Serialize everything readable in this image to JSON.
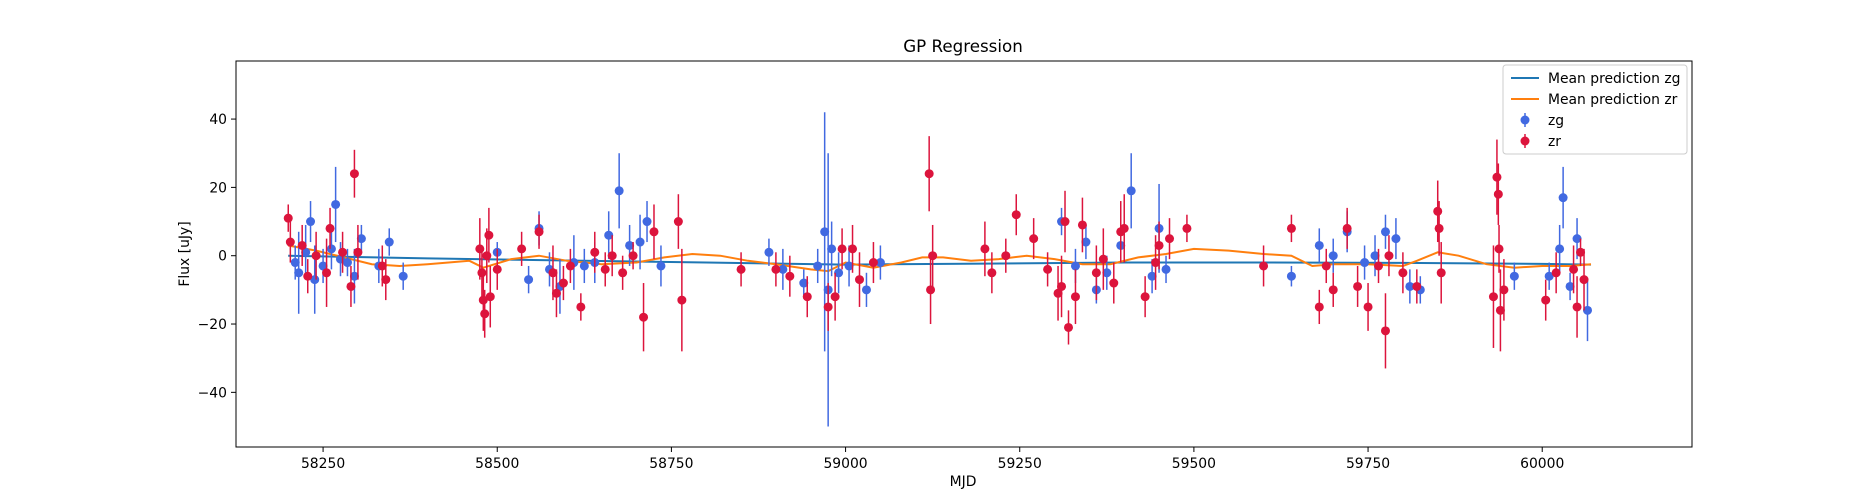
{
  "chart_data": {
    "type": "scatter",
    "title": "GP Regression",
    "xlabel": "MJD",
    "ylabel": "Flux [uJy]",
    "xlim": [
      58125,
      60215
    ],
    "ylim": [
      -56,
      57
    ],
    "xticks": [
      58250,
      58500,
      58750,
      59000,
      59250,
      59500,
      59750,
      60000
    ],
    "yticks": [
      -40,
      -20,
      0,
      20,
      40
    ],
    "grid": false,
    "legend_position": "top-right",
    "colors": {
      "zg_line": "#1f77b4",
      "zr_line": "#ff7f0e",
      "zg": "#4169e1",
      "zr": "#dc143c"
    },
    "lines": [
      {
        "name": "Mean prediction zg",
        "x": [
          58200,
          58400,
          58600,
          58800,
          59000,
          59200,
          59400,
          59600,
          59800,
          60000,
          60070
        ],
        "y": [
          0.0,
          -0.8,
          -1.4,
          -2.0,
          -2.6,
          -2.3,
          -2.0,
          -2.0,
          -2.1,
          -2.4,
          -2.6
        ]
      },
      {
        "name": "Mean prediction zr",
        "x": [
          58200,
          58240,
          58280,
          58320,
          58360,
          58400,
          58460,
          58480,
          58520,
          58560,
          58600,
          58650,
          58700,
          58740,
          58780,
          58820,
          58860,
          58900,
          58950,
          58975,
          59000,
          59040,
          59080,
          59110,
          59140,
          59180,
          59220,
          59260,
          59300,
          59340,
          59380,
          59420,
          59460,
          59500,
          59550,
          59600,
          59640,
          59670,
          59700,
          59750,
          59800,
          59820,
          59850,
          59880,
          59920,
          59960,
          60000,
          60040,
          60070
        ],
        "y": [
          3.0,
          1.5,
          -0.5,
          -2.5,
          -3.0,
          -2.5,
          -1.5,
          -3.5,
          -1.0,
          0.0,
          -1.5,
          -2.5,
          -2.0,
          -0.5,
          0.5,
          0.0,
          -1.5,
          -2.5,
          -4.0,
          -4.5,
          -2.0,
          -3.5,
          -2.0,
          -0.5,
          -0.5,
          -1.5,
          -1.0,
          0.0,
          -1.0,
          -2.5,
          -2.5,
          -0.5,
          0.5,
          2.0,
          1.5,
          0.5,
          0.0,
          -3.0,
          -2.5,
          -2.5,
          -3.0,
          -1.5,
          1.0,
          0.0,
          -2.5,
          -3.5,
          -3.0,
          -3.0,
          -2.5
        ]
      }
    ],
    "series": [
      {
        "name": "zg",
        "points": [
          [
            58210,
            -2,
            5
          ],
          [
            58215,
            -5,
            12
          ],
          [
            58225,
            1,
            8
          ],
          [
            58232,
            10,
            6
          ],
          [
            58238,
            -7,
            10
          ],
          [
            58250,
            -3,
            5
          ],
          [
            58262,
            2,
            6
          ],
          [
            58268,
            15,
            11
          ],
          [
            58275,
            -1,
            5
          ],
          [
            58285,
            -2,
            4
          ],
          [
            58295,
            -6,
            8
          ],
          [
            58305,
            5,
            4
          ],
          [
            58330,
            -3,
            5
          ],
          [
            58345,
            4,
            4
          ],
          [
            58365,
            -6,
            4
          ],
          [
            58500,
            1,
            3
          ],
          [
            58545,
            -7,
            4
          ],
          [
            58560,
            8,
            5
          ],
          [
            58575,
            -4,
            5
          ],
          [
            58590,
            -9,
            8
          ],
          [
            58610,
            -2,
            8
          ],
          [
            58625,
            -3,
            5
          ],
          [
            58640,
            -2,
            6
          ],
          [
            58660,
            6,
            7
          ],
          [
            58675,
            19,
            11
          ],
          [
            58690,
            3,
            6
          ],
          [
            58705,
            4,
            8
          ],
          [
            58715,
            10,
            6
          ],
          [
            58735,
            -3,
            6
          ],
          [
            58890,
            1,
            4
          ],
          [
            58910,
            -4,
            6
          ],
          [
            58940,
            -8,
            4
          ],
          [
            58960,
            -3,
            5
          ],
          [
            58970,
            7,
            35
          ],
          [
            58975,
            -10,
            40
          ],
          [
            58980,
            2,
            8
          ],
          [
            58990,
            -5,
            6
          ],
          [
            59005,
            -3,
            6
          ],
          [
            59030,
            -10,
            5
          ],
          [
            59050,
            -2,
            5
          ],
          [
            59310,
            10,
            4
          ],
          [
            59330,
            -3,
            5
          ],
          [
            59345,
            4,
            5
          ],
          [
            59360,
            -10,
            4
          ],
          [
            59375,
            -5,
            5
          ],
          [
            59395,
            3,
            5
          ],
          [
            59410,
            19,
            11
          ],
          [
            59440,
            -6,
            5
          ],
          [
            59450,
            8,
            13
          ],
          [
            59460,
            -4,
            4
          ],
          [
            59640,
            -6,
            3
          ],
          [
            59680,
            3,
            5
          ],
          [
            59700,
            0,
            5
          ],
          [
            59720,
            7,
            6
          ],
          [
            59745,
            -2,
            5
          ],
          [
            59760,
            0,
            6
          ],
          [
            59775,
            7,
            5
          ],
          [
            59790,
            5,
            6
          ],
          [
            59810,
            -9,
            5
          ],
          [
            59825,
            -10,
            4
          ],
          [
            59960,
            -6,
            4
          ],
          [
            60010,
            -6,
            4
          ],
          [
            60025,
            2,
            7
          ],
          [
            60030,
            17,
            9
          ],
          [
            60040,
            -9,
            4
          ],
          [
            60050,
            5,
            6
          ],
          [
            60065,
            -16,
            9
          ]
        ]
      },
      {
        "name": "zr",
        "points": [
          [
            58200,
            11,
            4
          ],
          [
            58203,
            4,
            6
          ],
          [
            58220,
            3,
            6
          ],
          [
            58228,
            -6,
            5
          ],
          [
            58240,
            0,
            7
          ],
          [
            58255,
            -5,
            10
          ],
          [
            58260,
            8,
            6
          ],
          [
            58278,
            1,
            6
          ],
          [
            58290,
            -9,
            6
          ],
          [
            58295,
            24,
            7
          ],
          [
            58300,
            1,
            8
          ],
          [
            58335,
            -3,
            6
          ],
          [
            58340,
            -7,
            6
          ],
          [
            58475,
            2,
            9
          ],
          [
            58478,
            -5,
            8
          ],
          [
            58480,
            -13,
            9
          ],
          [
            58482,
            -17,
            7
          ],
          [
            58485,
            0,
            8
          ],
          [
            58488,
            6,
            8
          ],
          [
            58490,
            -12,
            9
          ],
          [
            58500,
            -4,
            6
          ],
          [
            58535,
            2,
            5
          ],
          [
            58560,
            7,
            5
          ],
          [
            58580,
            -5,
            8
          ],
          [
            58585,
            -11,
            7
          ],
          [
            58595,
            -8,
            5
          ],
          [
            58605,
            -3,
            5
          ],
          [
            58620,
            -15,
            4
          ],
          [
            58640,
            1,
            6
          ],
          [
            58655,
            -4,
            5
          ],
          [
            58665,
            0,
            6
          ],
          [
            58680,
            -5,
            5
          ],
          [
            58695,
            0,
            4
          ],
          [
            58710,
            -18,
            10
          ],
          [
            58725,
            7,
            8
          ],
          [
            58760,
            10,
            8
          ],
          [
            58765,
            -13,
            15
          ],
          [
            58850,
            -4,
            5
          ],
          [
            58900,
            -4,
            5
          ],
          [
            58920,
            -6,
            6
          ],
          [
            58945,
            -12,
            6
          ],
          [
            58975,
            -15,
            7
          ],
          [
            58985,
            -12,
            7
          ],
          [
            58995,
            2,
            6
          ],
          [
            59010,
            2,
            7
          ],
          [
            59020,
            -7,
            8
          ],
          [
            59040,
            -2,
            6
          ],
          [
            59120,
            24,
            11
          ],
          [
            59122,
            -10,
            10
          ],
          [
            59125,
            0,
            9
          ],
          [
            59200,
            2,
            8
          ],
          [
            59210,
            -5,
            6
          ],
          [
            59230,
            0,
            5
          ],
          [
            59245,
            12,
            6
          ],
          [
            59270,
            5,
            6
          ],
          [
            59290,
            -4,
            5
          ],
          [
            59305,
            -11,
            8
          ],
          [
            59310,
            -9,
            9
          ],
          [
            59315,
            10,
            9
          ],
          [
            59320,
            -21,
            5
          ],
          [
            59330,
            -12,
            8
          ],
          [
            59340,
            9,
            8
          ],
          [
            59360,
            -5,
            8
          ],
          [
            59370,
            -1,
            9
          ],
          [
            59385,
            -8,
            6
          ],
          [
            59395,
            7,
            9
          ],
          [
            59400,
            8,
            10
          ],
          [
            59430,
            -12,
            6
          ],
          [
            59445,
            -2,
            8
          ],
          [
            59450,
            3,
            7
          ],
          [
            59465,
            5,
            6
          ],
          [
            59490,
            8,
            4
          ],
          [
            59600,
            -3,
            6
          ],
          [
            59640,
            8,
            4
          ],
          [
            59680,
            -15,
            5
          ],
          [
            59690,
            -3,
            5
          ],
          [
            59700,
            -10,
            5
          ],
          [
            59720,
            8,
            6
          ],
          [
            59735,
            -9,
            6
          ],
          [
            59750,
            -15,
            7
          ],
          [
            59765,
            -3,
            5
          ],
          [
            59775,
            -22,
            11
          ],
          [
            59780,
            0,
            6
          ],
          [
            59800,
            -5,
            6
          ],
          [
            59820,
            -9,
            5
          ],
          [
            59850,
            13,
            9
          ],
          [
            59852,
            8,
            8
          ],
          [
            59855,
            -5,
            9
          ],
          [
            59930,
            -12,
            15
          ],
          [
            59935,
            23,
            11
          ],
          [
            59937,
            18,
            9
          ],
          [
            59938,
            2,
            7
          ],
          [
            59940,
            -16,
            12
          ],
          [
            59945,
            -10,
            9
          ],
          [
            60005,
            -13,
            6
          ],
          [
            60020,
            -5,
            6
          ],
          [
            60045,
            -4,
            7
          ],
          [
            60050,
            -15,
            9
          ],
          [
            60055,
            1,
            4
          ],
          [
            60060,
            -7,
            9
          ]
        ]
      }
    ]
  }
}
